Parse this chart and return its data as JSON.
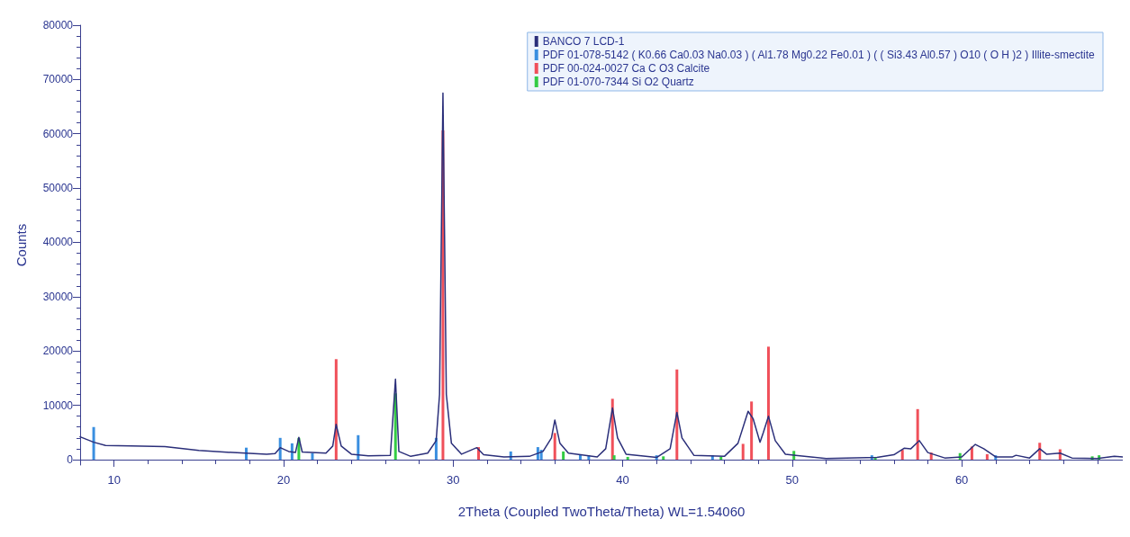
{
  "chart_data": {
    "type": "line",
    "xlabel": "2Theta (Coupled TwoTheta/Theta) WL=1.54060",
    "ylabel": "Counts",
    "xlim": [
      8,
      69.5
    ],
    "xticks": [
      10,
      20,
      30,
      40,
      50,
      60
    ],
    "ylim": [
      -1000,
      80000
    ],
    "yticks": [
      0,
      10000,
      20000,
      30000,
      40000,
      50000,
      60000,
      70000,
      80000
    ],
    "grid": false,
    "legend": "top right",
    "marker": "none",
    "line_style": "solid",
    "series": [
      {
        "name": "BANCO 7 LCD-1",
        "color": "#2b2f7a",
        "x": [
          8,
          8.8,
          9.5,
          11,
          13,
          15,
          17,
          19,
          19.5,
          19.8,
          20.3,
          20.7,
          20.9,
          21.1,
          22.5,
          22.9,
          23.1,
          23.4,
          24,
          25,
          26.3,
          26.6,
          26.8,
          27.5,
          28.5,
          29,
          29.2,
          29.4,
          29.6,
          29.9,
          30.5,
          31.4,
          31.8,
          33,
          34.5,
          35.3,
          35.8,
          36,
          36.3,
          36.8,
          38.5,
          39,
          39.4,
          39.7,
          40.2,
          42,
          42.8,
          43.2,
          43.5,
          44.2,
          46,
          46.8,
          47.4,
          47.7,
          48.1,
          48.3,
          48.6,
          49,
          49.6,
          50.2,
          52,
          55,
          56,
          56.6,
          57,
          57.5,
          58,
          59,
          60,
          60.8,
          61.3,
          62,
          63,
          63.2,
          64,
          64.6,
          65,
          65.8,
          66.5,
          68,
          69,
          69.5
        ],
        "values": [
          4200,
          3200,
          2600,
          2500,
          2400,
          1700,
          1300,
          1000,
          1100,
          2200,
          1500,
          1300,
          4100,
          1400,
          1200,
          2500,
          6500,
          2500,
          1000,
          700,
          800,
          14800,
          1500,
          600,
          1200,
          3500,
          12000,
          67500,
          12000,
          3000,
          1000,
          2200,
          900,
          500,
          600,
          1500,
          4000,
          7300,
          3000,
          1200,
          500,
          2000,
          9500,
          4000,
          1000,
          400,
          2000,
          8700,
          4000,
          800,
          600,
          3000,
          8900,
          7500,
          3200,
          5000,
          8000,
          3500,
          1000,
          800,
          200,
          400,
          900,
          2100,
          2000,
          3500,
          1300,
          300,
          500,
          2800,
          2000,
          500,
          500,
          800,
          300,
          2000,
          1000,
          1200,
          300,
          200,
          600,
          500
        ]
      },
      {
        "name": "PDF 01-078-5142 ( K0.66 Ca0.03 Na0.03 ) ( Al1.78 Mg0.22 Fe0.01 ) ( ( Si3.43 Al0.57 ) O10 ( O H )2 ) Illite-smectite",
        "type": "bar",
        "color": "#3a8fe0",
        "x": [
          8.8,
          17.8,
          19.8,
          20.5,
          21.7,
          24.4,
          29,
          33.4,
          35,
          35.2,
          37.5,
          38,
          42,
          45.3,
          54.7,
          62
        ],
        "values": [
          6000,
          2200,
          4000,
          3000,
          1200,
          4500,
          4000,
          1500,
          2300,
          1800,
          1000,
          800,
          800,
          800,
          800,
          800
        ]
      },
      {
        "name": "PDF 00-024-0027 Ca C O3 Calcite",
        "type": "bar",
        "color": "#f0505a",
        "x": [
          23.1,
          29.4,
          31.5,
          36,
          39.4,
          43.2,
          47.1,
          47.6,
          48.6,
          56.5,
          57.4,
          58.2,
          60.6,
          61.5,
          64.6,
          65.8
        ],
        "values": [
          18500,
          60600,
          2300,
          4900,
          11200,
          16600,
          2900,
          10700,
          20800,
          1800,
          9300,
          1300,
          2400,
          1000,
          3100,
          1900
        ]
      },
      {
        "name": "PDF 01-070-7344 Si O2 Quartz",
        "type": "bar",
        "color": "#33cc44",
        "x": [
          20.9,
          26.6,
          36.5,
          39.5,
          40.3,
          42.4,
          45.8,
          50.1,
          54.9,
          59.9,
          67.7,
          68.1
        ],
        "values": [
          4000,
          12200,
          1500,
          800,
          500,
          600,
          500,
          1600,
          500,
          1200,
          600,
          800
        ]
      }
    ]
  }
}
